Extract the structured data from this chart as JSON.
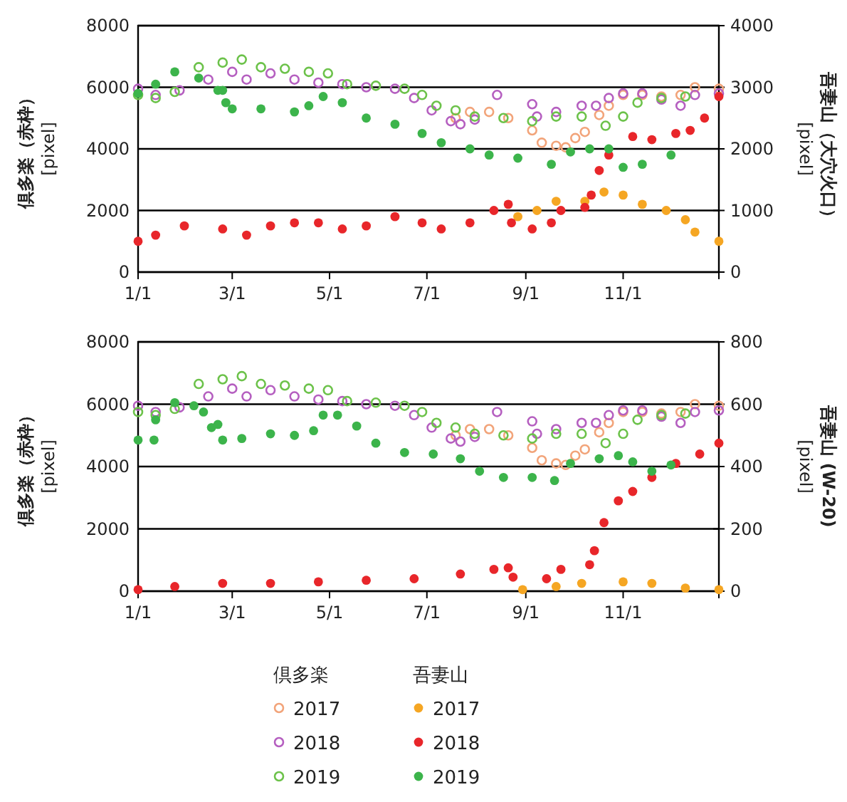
{
  "chart_data": [
    {
      "type": "scatter",
      "ylabel": "倶多楽（赤枠）\n[pixel]",
      "y2label": "吾妻山（大穴火口）\n[pixel]",
      "xlim": [
        "--01-01",
        "--12-31"
      ],
      "xticks": [
        {
          "value": "--01-01",
          "label": "1/1"
        },
        {
          "value": "--03-01",
          "label": "3/1"
        },
        {
          "value": "--05-01",
          "label": "5/1"
        },
        {
          "value": "--07-01",
          "label": "7/1"
        },
        {
          "value": "--09-01",
          "label": "9/1"
        },
        {
          "value": "--11-01",
          "label": "11/1"
        },
        {
          "value": "--12-31",
          "label": null
        }
      ],
      "ylim": [
        0,
        8000
      ],
      "yticks": [
        0,
        2000,
        4000,
        6000,
        8000
      ],
      "y2lim": [
        0,
        4000
      ],
      "y2ticks": [
        0,
        1000,
        2000,
        3000,
        4000
      ],
      "grid": "y",
      "marker": "circle",
      "legend": false,
      "series": [
        {
          "color": "#f2a47a",
          "x": [
            "--07-19",
            "--07-28",
            "--08-09",
            "--08-21",
            "--09-05",
            "--09-11",
            "--09-20",
            "--09-26",
            "--10-02",
            "--10-08",
            "--10-17",
            "--10-23",
            "--11-01",
            "--11-13",
            "--11-25",
            "--12-07",
            "--12-16",
            "--12-31"
          ],
          "values": [
            5000,
            5200,
            5200,
            5000,
            4600,
            4200,
            4100,
            4050,
            4350,
            4550,
            5100,
            5400,
            5750,
            5750,
            5700,
            5750,
            6000,
            5950
          ]
        },
        {
          "color": "#b55fc0",
          "x": [
            "--01-01",
            "--01-12",
            "--01-27",
            "--02-14",
            "--03-01",
            "--03-10",
            "--03-25",
            "--04-09",
            "--04-24",
            "--05-09",
            "--05-24",
            "--06-11",
            "--06-23",
            "--07-04",
            "--07-16",
            "--07-22",
            "--07-31",
            "--08-14",
            "--09-05",
            "--09-08",
            "--09-20",
            "--10-06",
            "--10-15",
            "--10-23",
            "--11-01",
            "--11-13",
            "--11-25",
            "--12-07",
            "--12-16",
            "--12-31"
          ],
          "values": [
            5950,
            5750,
            5900,
            6250,
            6500,
            6250,
            6450,
            6250,
            6150,
            6100,
            6000,
            5950,
            5650,
            5250,
            4900,
            4800,
            4950,
            5750,
            5450,
            5050,
            5200,
            5400,
            5400,
            5650,
            5800,
            5800,
            5600,
            5400,
            5750,
            5800
          ]
        },
        {
          "color": "#6cc24a",
          "x": [
            "--01-01",
            "--01-12",
            "--01-24",
            "--02-08",
            "--02-23",
            "--03-07",
            "--03-19",
            "--04-03",
            "--04-18",
            "--04-30",
            "--05-12",
            "--05-30",
            "--06-17",
            "--06-28",
            "--07-07",
            "--07-19",
            "--07-31",
            "--08-18",
            "--09-05",
            "--09-20",
            "--10-06",
            "--10-21",
            "--11-01",
            "--11-10",
            "--11-25",
            "--12-10"
          ],
          "values": [
            5750,
            5650,
            5850,
            6650,
            6800,
            6900,
            6650,
            6600,
            6500,
            6450,
            6100,
            6050,
            5950,
            5750,
            5400,
            5250,
            5050,
            5000,
            4900,
            5050,
            5050,
            4750,
            5050,
            5500,
            5650,
            5700
          ]
        },
        {
          "color": "#f5a623",
          "axis": "y2",
          "x": [
            "--08-27",
            "--09-08",
            "--09-20",
            "--10-08",
            "--10-20",
            "--11-01",
            "--11-13",
            "--11-28",
            "--12-10",
            "--12-16",
            "--12-31"
          ],
          "values": [
            900,
            1000,
            1150,
            1150,
            1300,
            1250,
            1100,
            1000,
            850,
            650,
            500
          ]
        },
        {
          "color": "#e8262a",
          "axis": "y2",
          "x": [
            "--01-01",
            "--01-12",
            "--01-30",
            "--02-23",
            "--03-10",
            "--03-25",
            "--04-09",
            "--04-24",
            "--05-09",
            "--05-24",
            "--06-11",
            "--06-28",
            "--07-10",
            "--07-28",
            "--08-12",
            "--08-21",
            "--08-23",
            "--09-05",
            "--09-17",
            "--09-23",
            "--10-08",
            "--10-12",
            "--10-17",
            "--10-23",
            "--11-07",
            "--11-19",
            "--12-04",
            "--12-13",
            "--12-22",
            "--12-31"
          ],
          "values": [
            500,
            600,
            750,
            700,
            600,
            750,
            800,
            800,
            700,
            750,
            900,
            800,
            700,
            800,
            1000,
            1100,
            800,
            700,
            800,
            1000,
            1050,
            1250,
            1650,
            1900,
            2200,
            2150,
            2250,
            2300,
            2500,
            2850
          ]
        },
        {
          "color": "#3cb44b",
          "axis": "y2",
          "x": [
            "--01-01",
            "--01-12",
            "--01-24",
            "--02-08",
            "--02-20",
            "--02-23",
            "--02-25",
            "--03-01",
            "--03-19",
            "--04-09",
            "--04-18",
            "--04-27",
            "--05-09",
            "--05-24",
            "--06-11",
            "--06-28",
            "--07-10",
            "--07-28",
            "--08-09",
            "--08-27",
            "--09-17",
            "--09-29",
            "--10-11",
            "--10-23",
            "--11-01",
            "--11-13",
            "--12-01"
          ],
          "values": [
            2900,
            3050,
            3250,
            3150,
            2950,
            2950,
            2750,
            2650,
            2650,
            2600,
            2700,
            2850,
            2750,
            2500,
            2400,
            2250,
            2100,
            2000,
            1900,
            1850,
            1750,
            1950,
            2000,
            2000,
            1700,
            1750,
            1900
          ]
        }
      ]
    },
    {
      "type": "scatter",
      "ylabel": "倶多楽（赤枠）\n[pixel]",
      "y2label": "吾妻山 (W-20)\n[pixel]",
      "xlim": [
        "--01-01",
        "--12-31"
      ],
      "xticks": [
        {
          "value": "--01-01",
          "label": "1/1"
        },
        {
          "value": "--03-01",
          "label": "3/1"
        },
        {
          "value": "--05-01",
          "label": "5/1"
        },
        {
          "value": "--07-01",
          "label": "7/1"
        },
        {
          "value": "--09-01",
          "label": "9/1"
        },
        {
          "value": "--11-01",
          "label": "11/1"
        },
        {
          "value": "--12-31",
          "label": null
        }
      ],
      "ylim": [
        0,
        8000
      ],
      "yticks": [
        0,
        2000,
        4000,
        6000,
        8000
      ],
      "y2lim": [
        0,
        800
      ],
      "y2ticks": [
        0,
        200,
        400,
        600,
        800
      ],
      "grid": "y",
      "marker": "circle",
      "legend": "bottom",
      "annotations": [
        "倶多楽",
        "吾妻山"
      ],
      "series": [
        {
          "name": "2017",
          "color": "#f2a47a",
          "x": [
            "--07-19",
            "--07-28",
            "--08-09",
            "--08-21",
            "--09-05",
            "--09-11",
            "--09-20",
            "--09-26",
            "--10-02",
            "--10-08",
            "--10-17",
            "--10-23",
            "--11-01",
            "--11-13",
            "--11-25",
            "--12-07",
            "--12-16",
            "--12-31"
          ],
          "values": [
            5000,
            5200,
            5200,
            5000,
            4600,
            4200,
            4100,
            4050,
            4350,
            4550,
            5100,
            5400,
            5750,
            5750,
            5700,
            5750,
            6000,
            5950
          ]
        },
        {
          "name": "2018",
          "color": "#b55fc0",
          "x": [
            "--01-01",
            "--01-12",
            "--01-27",
            "--02-14",
            "--03-01",
            "--03-10",
            "--03-25",
            "--04-09",
            "--04-24",
            "--05-09",
            "--05-24",
            "--06-11",
            "--06-23",
            "--07-04",
            "--07-16",
            "--07-22",
            "--07-31",
            "--08-14",
            "--09-05",
            "--09-08",
            "--09-20",
            "--10-06",
            "--10-15",
            "--10-23",
            "--11-01",
            "--11-13",
            "--11-25",
            "--12-07",
            "--12-16",
            "--12-31"
          ],
          "values": [
            5950,
            5750,
            5900,
            6250,
            6500,
            6250,
            6450,
            6250,
            6150,
            6100,
            6000,
            5950,
            5650,
            5250,
            4900,
            4800,
            4950,
            5750,
            5450,
            5050,
            5200,
            5400,
            5400,
            5650,
            5800,
            5800,
            5600,
            5400,
            5750,
            5800
          ]
        },
        {
          "name": "2019",
          "color": "#6cc24a",
          "x": [
            "--01-01",
            "--01-12",
            "--01-24",
            "--02-08",
            "--02-23",
            "--03-07",
            "--03-19",
            "--04-03",
            "--04-18",
            "--04-30",
            "--05-12",
            "--05-30",
            "--06-17",
            "--06-28",
            "--07-07",
            "--07-19",
            "--07-31",
            "--08-18",
            "--09-05",
            "--09-20",
            "--10-06",
            "--10-21",
            "--11-01",
            "--11-10",
            "--11-25",
            "--12-10"
          ],
          "values": [
            5750,
            5650,
            5850,
            6650,
            6800,
            6900,
            6650,
            6600,
            6500,
            6450,
            6100,
            6050,
            5950,
            5750,
            5400,
            5250,
            5050,
            5000,
            4900,
            5050,
            5050,
            4750,
            5050,
            5500,
            5650,
            5700
          ]
        },
        {
          "name": "2017",
          "color": "#f5a623",
          "axis": "y2",
          "x": [
            "--08-30",
            "--09-20",
            "--10-06",
            "--11-01",
            "--11-19",
            "--12-10",
            "--12-31"
          ],
          "values": [
            5,
            15,
            25,
            30,
            25,
            10,
            5
          ]
        },
        {
          "name": "2018",
          "color": "#e8262a",
          "axis": "y2",
          "x": [
            "--01-01",
            "--01-24",
            "--02-23",
            "--03-25",
            "--04-24",
            "--05-24",
            "--06-23",
            "--07-22",
            "--08-12",
            "--08-21",
            "--08-24",
            "--09-14",
            "--09-23",
            "--10-11",
            "--10-14",
            "--10-20",
            "--10-29",
            "--11-07",
            "--11-19",
            "--12-04",
            "--12-19",
            "--12-31"
          ],
          "values": [
            5,
            15,
            25,
            25,
            30,
            35,
            40,
            55,
            70,
            75,
            45,
            40,
            70,
            85,
            130,
            220,
            290,
            320,
            365,
            410,
            440,
            475
          ]
        },
        {
          "name": "2019",
          "color": "#3cb44b",
          "axis": "y2",
          "x": [
            "--01-01",
            "--01-11",
            "--01-12",
            "--01-24",
            "--02-05",
            "--02-11",
            "--02-16",
            "--02-20",
            "--02-23",
            "--03-07",
            "--03-25",
            "--04-09",
            "--04-21",
            "--04-27",
            "--05-06",
            "--05-18",
            "--05-30",
            "--06-17",
            "--07-05",
            "--07-22",
            "--08-03",
            "--08-18",
            "--09-05",
            "--09-19",
            "--09-29",
            "--10-17",
            "--10-29",
            "--11-07",
            "--11-19",
            "--12-01"
          ],
          "values": [
            485,
            485,
            550,
            605,
            595,
            575,
            525,
            535,
            485,
            490,
            505,
            500,
            515,
            565,
            565,
            530,
            475,
            445,
            440,
            425,
            385,
            365,
            365,
            355,
            410,
            425,
            435,
            415,
            385,
            405
          ]
        }
      ]
    }
  ]
}
